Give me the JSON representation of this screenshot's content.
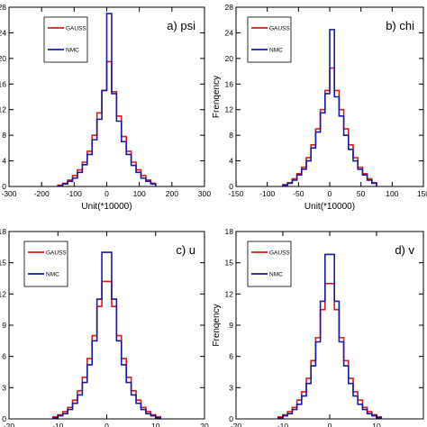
{
  "chart_data": [
    {
      "type": "histogram",
      "panel_label": "a) psi",
      "xlabel": "Unit(*10000)",
      "ylabel": "",
      "xlim": [
        -300,
        300
      ],
      "ylim": [
        0,
        28
      ],
      "xticks": [
        -300,
        -200,
        -100,
        0,
        100,
        200,
        300
      ],
      "yticks": [
        0,
        4,
        8,
        12,
        16,
        20,
        24,
        28
      ],
      "bin_edges": [
        -150,
        -135,
        -120,
        -105,
        -90,
        -75,
        -60,
        -45,
        -30,
        -15,
        0,
        15,
        30,
        45,
        60,
        75,
        90,
        105,
        120,
        135,
        150
      ],
      "legend": "top-left",
      "series": [
        {
          "name": "GAUSS",
          "color": "#dd1c1c",
          "values": [
            0.2,
            0.5,
            1.0,
            1.7,
            2.6,
            3.8,
            5.5,
            8.0,
            11.5,
            15.0,
            19.5,
            14.8,
            11.0,
            7.8,
            5.5,
            3.8,
            2.6,
            1.7,
            1.0,
            0.5
          ]
        },
        {
          "name": "NMC",
          "color": "#1a1aa6",
          "values": [
            0.1,
            0.4,
            0.8,
            1.3,
            2.2,
            3.4,
            5.0,
            7.3,
            10.5,
            15.0,
            27.0,
            14.5,
            10.2,
            7.0,
            5.0,
            3.3,
            2.2,
            1.3,
            0.8,
            0.4
          ]
        }
      ]
    },
    {
      "type": "histogram",
      "panel_label": "b) chi",
      "xlabel": "Unit(*10000)",
      "ylabel": "Frenqency",
      "xlim": [
        -150,
        150
      ],
      "ylim": [
        0,
        28
      ],
      "xticks": [
        -150,
        -100,
        -50,
        0,
        50,
        100,
        150
      ],
      "yticks": [
        0,
        4,
        8,
        12,
        16,
        20,
        24,
        28
      ],
      "bin_edges": [
        -75,
        -67.5,
        -60,
        -52.5,
        -45,
        -37.5,
        -30,
        -22.5,
        -15,
        -7.5,
        0,
        7.5,
        15,
        22.5,
        30,
        37.5,
        45,
        52.5,
        60,
        67.5,
        75
      ],
      "legend": "top-left",
      "series": [
        {
          "name": "GAUSS",
          "color": "#dd1c1c",
          "values": [
            0.3,
            0.6,
            1.2,
            2.0,
            3.0,
            4.5,
            6.5,
            9.0,
            12.0,
            15.0,
            18.5,
            15.0,
            12.0,
            9.0,
            6.5,
            4.5,
            3.0,
            2.0,
            1.2,
            0.6
          ]
        },
        {
          "name": "NMC",
          "color": "#1a1aa6",
          "values": [
            0.2,
            0.5,
            1.0,
            1.8,
            2.7,
            4.0,
            6.0,
            8.5,
            11.5,
            14.5,
            24.5,
            14.0,
            11.0,
            8.0,
            5.8,
            4.0,
            2.7,
            1.8,
            1.0,
            0.5
          ]
        }
      ]
    },
    {
      "type": "histogram",
      "panel_label": "c) u",
      "xlabel": "",
      "ylabel": "",
      "xlim": [
        -20,
        20
      ],
      "ylim": [
        0,
        18
      ],
      "xticks": [
        -20,
        -10,
        0,
        10,
        20
      ],
      "yticks": [
        0,
        3,
        6,
        9,
        12,
        15,
        18
      ],
      "bin_edges": [
        -11,
        -10,
        -9,
        -8,
        -7,
        -6,
        -5,
        -4,
        -3,
        -2,
        -1,
        0,
        1,
        2,
        3,
        4,
        5,
        6,
        7,
        8,
        9,
        10,
        11
      ],
      "legend": "top-left",
      "series": [
        {
          "name": "GAUSS",
          "color": "#dd1c1c",
          "values": [
            0.2,
            0.4,
            0.7,
            1.1,
            1.8,
            2.7,
            4.0,
            5.8,
            8.0,
            10.8,
            13.2,
            13.2,
            10.8,
            8.0,
            5.8,
            4.0,
            2.7,
            1.8,
            1.1,
            0.7,
            0.4,
            0.2
          ]
        },
        {
          "name": "NMC",
          "color": "#1a1aa6",
          "values": [
            0.1,
            0.3,
            0.5,
            0.9,
            1.5,
            2.3,
            3.5,
            5.2,
            7.5,
            11.5,
            16.0,
            16.0,
            11.5,
            7.5,
            5.2,
            3.5,
            2.3,
            1.5,
            0.9,
            0.5,
            0.3,
            0.1
          ]
        }
      ]
    },
    {
      "type": "histogram",
      "panel_label": "d) v",
      "xlabel": "",
      "ylabel": "Frenqency",
      "xlim": [
        -20,
        20
      ],
      "ylim": [
        0,
        18
      ],
      "xticks": [
        -20,
        -10,
        0,
        10
      ],
      "yticks": [
        0,
        3,
        6,
        9,
        12,
        15,
        18
      ],
      "bin_edges": [
        -11,
        -10,
        -9,
        -8,
        -7,
        -6,
        -5,
        -4,
        -3,
        -2,
        -1,
        0,
        1,
        2,
        3,
        4,
        5,
        6,
        7,
        8,
        9,
        10,
        11
      ],
      "legend": "top-left",
      "series": [
        {
          "name": "GAUSS",
          "color": "#dd1c1c",
          "values": [
            0.2,
            0.4,
            0.7,
            1.1,
            1.8,
            2.6,
            3.9,
            5.6,
            7.8,
            10.5,
            13.0,
            13.0,
            10.5,
            7.8,
            5.6,
            3.9,
            2.6,
            1.8,
            1.1,
            0.7,
            0.4,
            0.2
          ]
        },
        {
          "name": "NMC",
          "color": "#1a1aa6",
          "values": [
            0.1,
            0.3,
            0.5,
            0.9,
            1.4,
            2.2,
            3.4,
            5.1,
            7.4,
            11.3,
            15.8,
            15.8,
            11.3,
            7.4,
            5.1,
            3.4,
            2.2,
            1.4,
            0.9,
            0.5,
            0.3,
            0.1
          ]
        }
      ]
    }
  ]
}
